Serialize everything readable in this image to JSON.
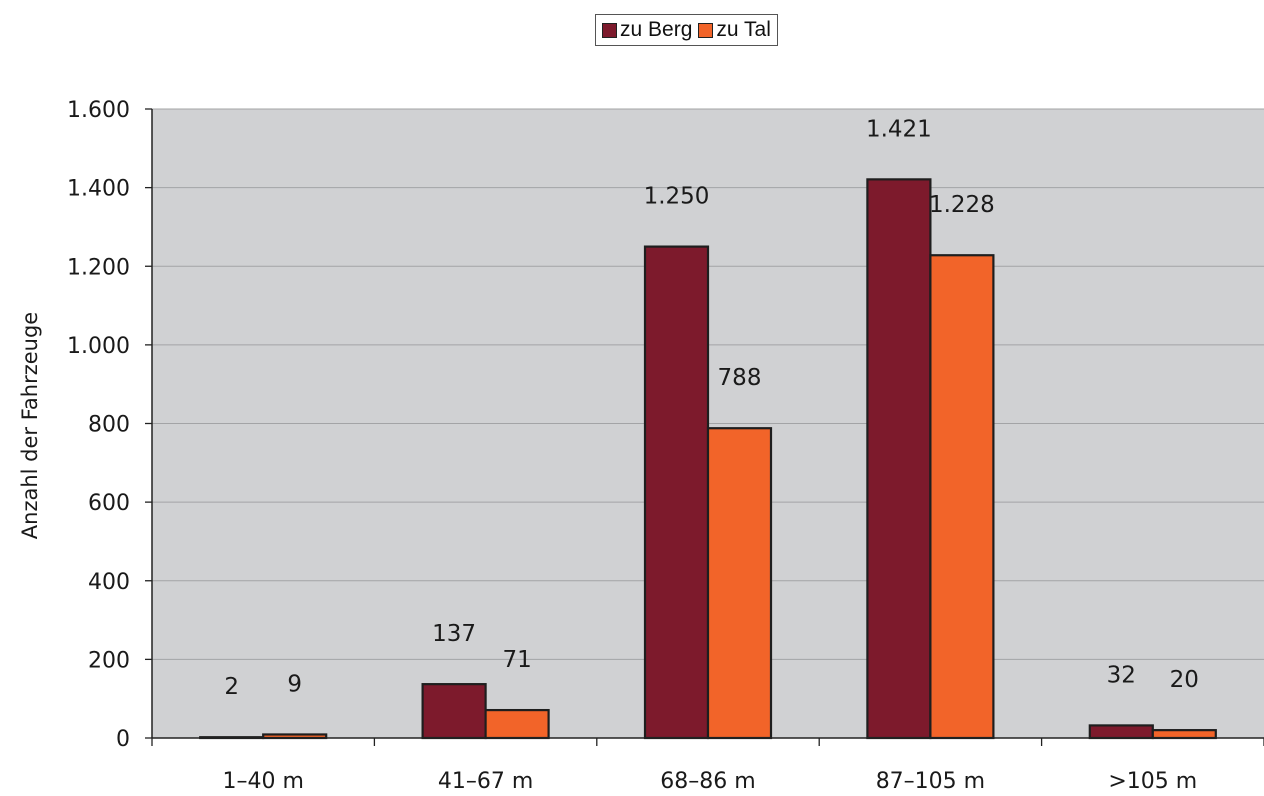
{
  "chart_data": {
    "type": "bar",
    "categories": [
      "1–40 m",
      "41–67 m",
      "68–86 m",
      "87–105 m",
      ">105 m"
    ],
    "series": [
      {
        "name": "zu Berg",
        "values": [
          2,
          137,
          1250,
          1421,
          32
        ],
        "labels": [
          "2",
          "137",
          "1.250",
          "1.421",
          "32"
        ],
        "color": "#7d1a2c"
      },
      {
        "name": "zu Tal",
        "values": [
          9,
          71,
          788,
          1228,
          20
        ],
        "labels": [
          "9",
          "71",
          "788",
          "1.228",
          "20"
        ],
        "color": "#f26429"
      }
    ],
    "ylabel": "Anzahl der Fahrzeuge",
    "xlabel": "",
    "ylim": [
      0,
      1600
    ],
    "yticks": [
      0,
      200,
      400,
      600,
      800,
      1000,
      1200,
      1400,
      1600
    ],
    "ytick_labels": [
      "0",
      "200",
      "400",
      "600",
      "800",
      "1.000",
      "1.200",
      "1.400",
      "1.600"
    ],
    "grid": true,
    "plot_background": "#d0d1d3",
    "legend_position": "top-center"
  }
}
